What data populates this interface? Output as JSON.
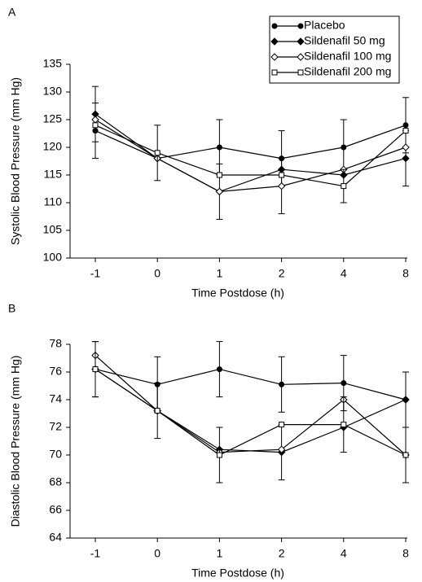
{
  "chart_data": [
    {
      "type": "line",
      "panel_label": "A",
      "categories": [
        "-1",
        "0",
        "1",
        "2",
        "4",
        "8"
      ],
      "xlabel": "Time Postdose (h)",
      "ylabel": "Systolic Blood Pressure (mm Hg)",
      "ylim": [
        100,
        135
      ],
      "yticks": [
        100,
        105,
        110,
        115,
        120,
        125,
        130,
        135
      ],
      "legend": "top-right",
      "series": [
        {
          "name": "Placebo",
          "color": "#000000",
          "marker": "circle-filled",
          "values": [
            123,
            118,
            120,
            118,
            120,
            124
          ],
          "errors": [
            5,
            null,
            5,
            5,
            5,
            5
          ]
        },
        {
          "name": "Sildenafil 50 mg",
          "color": "#000000",
          "marker": "diamond-filled",
          "values": [
            126,
            118,
            112,
            116,
            115,
            118
          ],
          "errors": [
            5,
            null,
            null,
            null,
            null,
            5
          ]
        },
        {
          "name": "Sildenafil 100 mg",
          "color": "#000000",
          "marker": "diamond-open",
          "values": [
            125,
            118,
            112,
            113,
            116,
            120
          ],
          "errors": [
            null,
            null,
            5,
            5,
            null,
            null
          ]
        },
        {
          "name": "Sildenafil 200 mg",
          "color": "#000000",
          "marker": "square-open",
          "values": [
            124,
            119,
            115,
            115,
            113,
            123
          ],
          "errors": [
            null,
            5,
            null,
            null,
            3,
            null
          ]
        }
      ]
    },
    {
      "type": "line",
      "panel_label": "B",
      "categories": [
        "-1",
        "0",
        "1",
        "2",
        "4",
        "8"
      ],
      "xlabel": "Time Postdose (h)",
      "ylabel": "Diastolic Blood Pressure (mm Hg)",
      "ylim": [
        64,
        78
      ],
      "yticks": [
        64,
        66,
        68,
        70,
        72,
        74,
        76,
        78
      ],
      "series": [
        {
          "color": "#000000",
          "marker": "circle-filled",
          "values": [
            76.2,
            75.1,
            76.2,
            75.1,
            75.2,
            74.0
          ],
          "errors": [
            2,
            2,
            2,
            2,
            2,
            2
          ]
        },
        {
          "color": "#000000",
          "marker": "diamond-filled",
          "values": [
            76.2,
            73.2,
            70.4,
            70.2,
            72.0,
            74.0
          ],
          "errors": [
            null,
            null,
            null,
            2,
            null,
            null
          ]
        },
        {
          "color": "#000000",
          "marker": "diamond-open",
          "values": [
            77.2,
            73.2,
            70.2,
            70.4,
            74.0,
            70.0
          ],
          "errors": [
            null,
            null,
            null,
            null,
            null,
            null
          ]
        },
        {
          "color": "#000000",
          "marker": "square-open",
          "values": [
            76.2,
            73.2,
            70.0,
            72.2,
            72.2,
            70.0
          ],
          "errors": [
            2,
            2,
            2,
            null,
            2,
            2
          ]
        }
      ]
    }
  ]
}
